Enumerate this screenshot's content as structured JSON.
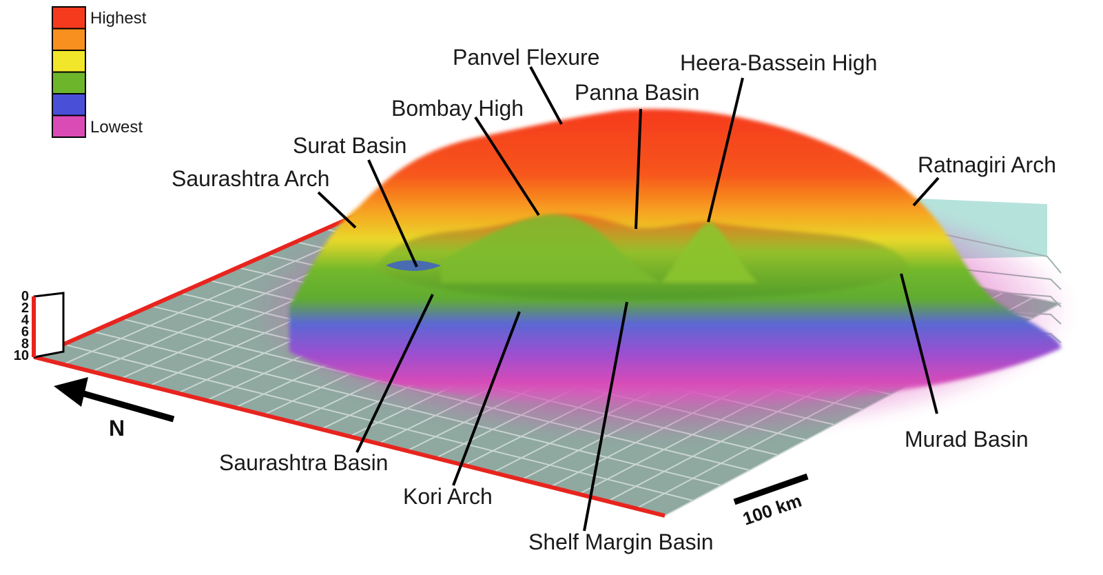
{
  "legend": {
    "high_label": "Highest",
    "low_label": "Lowest",
    "colors": [
      "#f53a1e",
      "#f7901e",
      "#f2e62a",
      "#6db52b",
      "#4a4fd8",
      "#db4bb6"
    ]
  },
  "depth_axis": {
    "ticks": [
      "0",
      "2",
      "4",
      "6",
      "8",
      "10"
    ]
  },
  "north_label": "N",
  "scale_bar_label": "100 km",
  "features": {
    "panvel_flexure": "Panvel Flexure",
    "heera_bassein_high": "Heera-Bassein High",
    "panna_basin": "Panna Basin",
    "bombay_high": "Bombay High",
    "surat_basin": "Surat Basin",
    "saurashtra_arch": "Saurashtra Arch",
    "ratnagiri_arch": "Ratnagiri Arch",
    "murad_basin": "Murad Basin",
    "saurashtra_basin": "Saurashtra Basin",
    "kori_arch": "Kori Arch",
    "shelf_margin_basin": "Shelf Margin Basin"
  }
}
